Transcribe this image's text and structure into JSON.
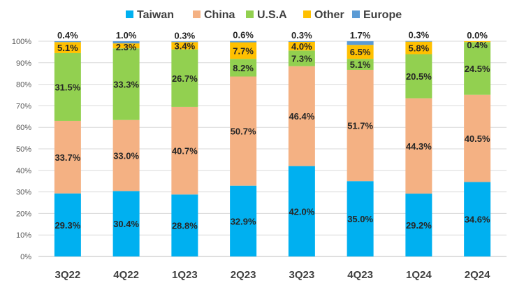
{
  "chart_data": {
    "type": "bar",
    "stacked": true,
    "title": "",
    "xlabel": "",
    "ylabel": "",
    "ylim": [
      0,
      100
    ],
    "y_ticks": [
      "0%",
      "10%",
      "20%",
      "30%",
      "40%",
      "50%",
      "60%",
      "70%",
      "80%",
      "90%",
      "100%"
    ],
    "categories": [
      "3Q22",
      "4Q22",
      "1Q23",
      "2Q23",
      "3Q23",
      "4Q23",
      "1Q24",
      "2Q24"
    ],
    "legend_position": "top",
    "series": [
      {
        "name": "Taiwan",
        "color": "#00B0F0",
        "values": [
          29.3,
          30.4,
          28.8,
          32.9,
          42.0,
          35.0,
          29.2,
          34.6
        ],
        "labels": [
          "29.3%",
          "30.4%",
          "28.8%",
          "32.9%",
          "42.0%",
          "35.0%",
          "29.2%",
          "34.6%"
        ]
      },
      {
        "name": "China",
        "color": "#F4B183",
        "values": [
          33.7,
          33.0,
          40.7,
          50.7,
          46.4,
          51.7,
          44.3,
          40.5
        ],
        "labels": [
          "33.7%",
          "33.0%",
          "40.7%",
          "50.7%",
          "46.4%",
          "51.7%",
          "44.3%",
          "40.5%"
        ]
      },
      {
        "name": "U.S.A",
        "color": "#92D050",
        "values": [
          31.5,
          33.3,
          26.7,
          8.2,
          7.3,
          5.1,
          20.5,
          24.5
        ],
        "labels": [
          "31.5%",
          "33.3%",
          "26.7%",
          "8.2%",
          "7.3%",
          "5.1%",
          "20.5%",
          "24.5%"
        ]
      },
      {
        "name": "Other",
        "color": "#FFC000",
        "values": [
          5.1,
          2.3,
          3.4,
          7.7,
          4.0,
          6.5,
          5.8,
          0.4
        ],
        "labels": [
          "5.1%",
          "2.3%",
          "3.4%",
          "7.7%",
          "4.0%",
          "6.5%",
          "5.8%",
          "0.4%"
        ]
      },
      {
        "name": "Europe",
        "color": "#5B9BD5",
        "values": [
          0.4,
          1.0,
          0.3,
          0.6,
          0.3,
          1.7,
          0.3,
          0.0
        ],
        "labels": [
          "0.4%",
          "1.0%",
          "0.3%",
          "0.6%",
          "0.3%",
          "1.7%",
          "0.3%",
          "0.0%"
        ]
      }
    ]
  }
}
